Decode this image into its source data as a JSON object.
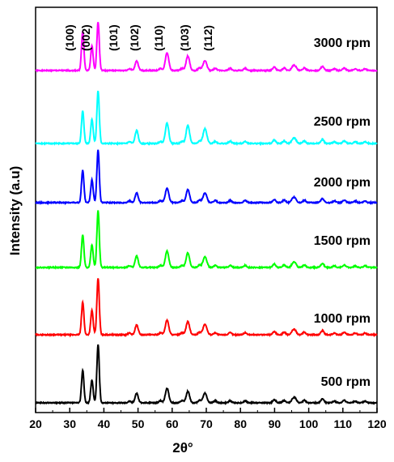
{
  "chart_data": {
    "type": "line",
    "title": "",
    "xlabel": "2θ°",
    "ylabel": "Intensity (a.u)",
    "xlim": [
      20,
      120
    ],
    "x_ticks": [
      "20",
      "30",
      "40",
      "50",
      "60",
      "70",
      "80",
      "90",
      "100",
      "110",
      "120"
    ],
    "grid": false,
    "peaks": [
      {
        "label": "(100)",
        "x": 33.8
      },
      {
        "label": "(002)",
        "x": 36.5
      },
      {
        "label": "(101)",
        "x": 38.3
      },
      {
        "label": "(102)",
        "x": 49.6
      },
      {
        "label": "(110)",
        "x": 58.5
      },
      {
        "label": "(103)",
        "x": 64.6
      },
      {
        "label": "(112)",
        "x": 69.6
      }
    ],
    "series": [
      {
        "name": "3000 rpm",
        "color": "#ff00ff",
        "peak_heights": [
          48,
          30,
          60,
          12,
          22,
          18,
          12
        ]
      },
      {
        "name": "2500 rpm",
        "color": "#00ffff",
        "peak_heights": [
          40,
          30,
          65,
          16,
          25,
          22,
          18
        ]
      },
      {
        "name": "2000 rpm",
        "color": "#0000ff",
        "peak_heights": [
          40,
          28,
          65,
          12,
          18,
          16,
          12
        ]
      },
      {
        "name": "1500 rpm",
        "color": "#00ff00",
        "peak_heights": [
          40,
          28,
          70,
          14,
          20,
          18,
          13
        ]
      },
      {
        "name": "1000 rpm",
        "color": "#ff0000",
        "peak_heights": [
          40,
          30,
          70,
          12,
          18,
          16,
          13
        ]
      },
      {
        "name": "500 rpm",
        "color": "#000000",
        "peak_heights": [
          40,
          28,
          72,
          12,
          18,
          14,
          12
        ]
      }
    ]
  }
}
